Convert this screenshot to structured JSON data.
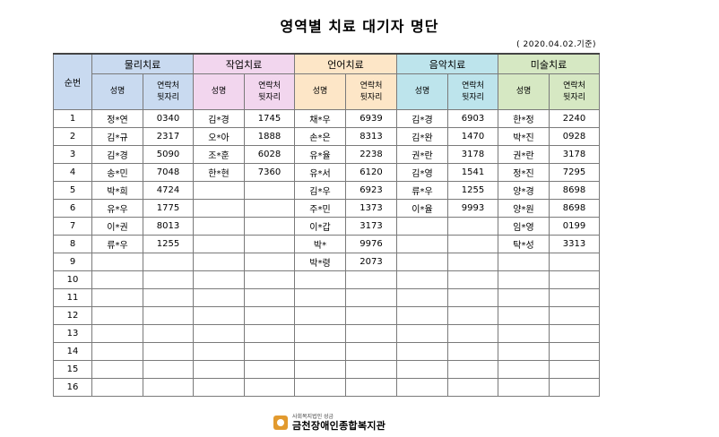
{
  "title": "영역별 치료 대기자 명단",
  "date_note": "( 2020.04.02.기준)",
  "header": {
    "seq": "순번",
    "name_col": "성명",
    "phone_col_line1": "연락처",
    "phone_col_line2": "뒷자리",
    "groups": [
      "물리치료",
      "작업치료",
      "언어치료",
      "음악치료",
      "미술치료"
    ]
  },
  "rows": [
    {
      "no": "1",
      "cells": [
        [
          "정*연",
          "0340"
        ],
        [
          "김*경",
          "1745"
        ],
        [
          "채*우",
          "6939"
        ],
        [
          "김*경",
          "6903"
        ],
        [
          "한*정",
          "2240"
        ]
      ]
    },
    {
      "no": "2",
      "cells": [
        [
          "김*규",
          "2317"
        ],
        [
          "오*아",
          "1888"
        ],
        [
          "손*은",
          "8313"
        ],
        [
          "김*완",
          "1470"
        ],
        [
          "박*진",
          "0928"
        ]
      ]
    },
    {
      "no": "3",
      "cells": [
        [
          "김*경",
          "5090"
        ],
        [
          "조*훈",
          "6028"
        ],
        [
          "유*율",
          "2238"
        ],
        [
          "권*란",
          "3178"
        ],
        [
          "권*란",
          "3178"
        ]
      ]
    },
    {
      "no": "4",
      "cells": [
        [
          "송*민",
          "7048"
        ],
        [
          "한*현",
          "7360"
        ],
        [
          "유*서",
          "6120"
        ],
        [
          "김*영",
          "1541"
        ],
        [
          "정*진",
          "7295"
        ]
      ]
    },
    {
      "no": "5",
      "cells": [
        [
          "박*희",
          "4724"
        ],
        [
          "",
          ""
        ],
        [
          "김*우",
          "6923"
        ],
        [
          "류*우",
          "1255"
        ],
        [
          "양*경",
          "8698"
        ]
      ]
    },
    {
      "no": "6",
      "cells": [
        [
          "유*우",
          "1775"
        ],
        [
          "",
          ""
        ],
        [
          "주*민",
          "1373"
        ],
        [
          "이*율",
          "9993"
        ],
        [
          "양*원",
          "8698"
        ]
      ]
    },
    {
      "no": "7",
      "cells": [
        [
          "이*권",
          "8013"
        ],
        [
          "",
          ""
        ],
        [
          "이*갑",
          "3173"
        ],
        [
          "",
          ""
        ],
        [
          "임*영",
          "0199"
        ]
      ]
    },
    {
      "no": "8",
      "cells": [
        [
          "류*우",
          "1255"
        ],
        [
          "",
          ""
        ],
        [
          "박*",
          "9976"
        ],
        [
          "",
          ""
        ],
        [
          "탁*성",
          "3313"
        ]
      ]
    },
    {
      "no": "9",
      "cells": [
        [
          "",
          ""
        ],
        [
          "",
          ""
        ],
        [
          "박*령",
          "2073"
        ],
        [
          "",
          ""
        ],
        [
          "",
          ""
        ]
      ]
    },
    {
      "no": "10",
      "cells": [
        [
          "",
          ""
        ],
        [
          "",
          ""
        ],
        [
          "",
          ""
        ],
        [
          "",
          ""
        ],
        [
          "",
          ""
        ]
      ]
    },
    {
      "no": "11",
      "cells": [
        [
          "",
          ""
        ],
        [
          "",
          ""
        ],
        [
          "",
          ""
        ],
        [
          "",
          ""
        ],
        [
          "",
          ""
        ]
      ]
    },
    {
      "no": "12",
      "cells": [
        [
          "",
          ""
        ],
        [
          "",
          ""
        ],
        [
          "",
          ""
        ],
        [
          "",
          ""
        ],
        [
          "",
          ""
        ]
      ]
    },
    {
      "no": "13",
      "cells": [
        [
          "",
          ""
        ],
        [
          "",
          ""
        ],
        [
          "",
          ""
        ],
        [
          "",
          ""
        ],
        [
          "",
          ""
        ]
      ]
    },
    {
      "no": "14",
      "cells": [
        [
          "",
          ""
        ],
        [
          "",
          ""
        ],
        [
          "",
          ""
        ],
        [
          "",
          ""
        ],
        [
          "",
          ""
        ]
      ]
    },
    {
      "no": "15",
      "cells": [
        [
          "",
          ""
        ],
        [
          "",
          ""
        ],
        [
          "",
          ""
        ],
        [
          "",
          ""
        ],
        [
          "",
          ""
        ]
      ]
    },
    {
      "no": "16",
      "cells": [
        [
          "",
          ""
        ],
        [
          "",
          ""
        ],
        [
          "",
          ""
        ],
        [
          "",
          ""
        ],
        [
          "",
          ""
        ]
      ]
    }
  ],
  "footer": {
    "org_small": "사회복지법인 성금",
    "org_name": "금천장애인종합복지관"
  },
  "colors": {
    "physical": "#c9daf0",
    "occupational": "#f2d6ee",
    "speech": "#fde6c7",
    "music": "#bde4ec",
    "art": "#d6e8c3"
  }
}
